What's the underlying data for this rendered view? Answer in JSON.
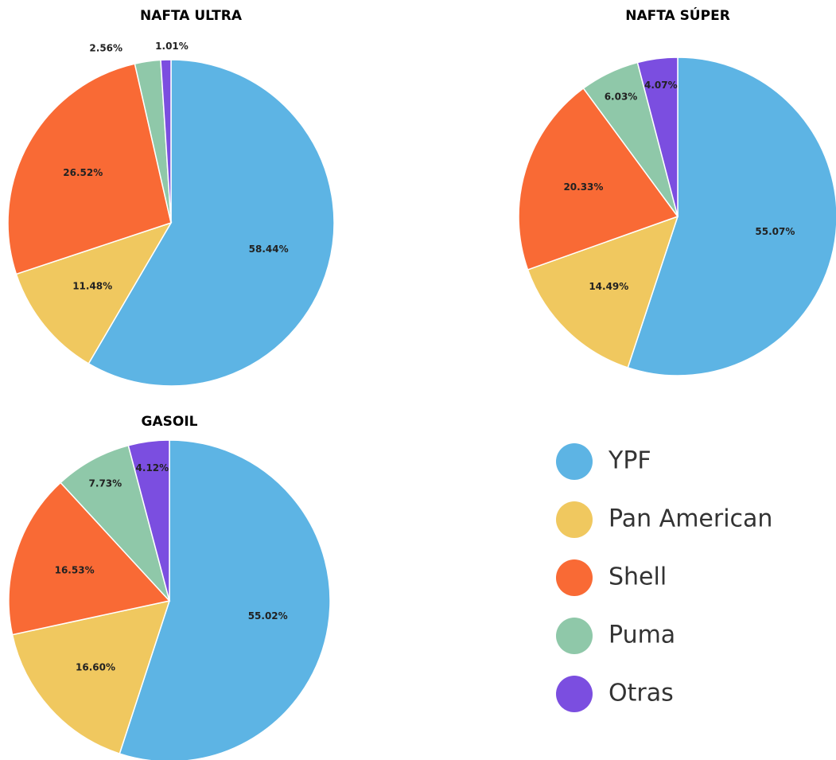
{
  "legend": {
    "categories": [
      "YPF",
      "Pan American",
      "Shell",
      "Puma",
      "Otras"
    ],
    "colors": [
      "#5db4e4",
      "#f0c85f",
      "#f96a35",
      "#8fc8a9",
      "#7b4ee0"
    ]
  },
  "chart_data": [
    {
      "type": "pie",
      "title": "NAFTA ULTRA",
      "values": [
        58.44,
        11.48,
        26.52,
        2.56,
        1.01
      ],
      "value_labels": [
        "58.44%",
        "11.48%",
        "26.52%",
        "2.56%",
        "1.01%"
      ]
    },
    {
      "type": "pie",
      "title": "NAFTA SÚPER",
      "values": [
        55.07,
        14.49,
        20.33,
        6.03,
        4.07
      ],
      "value_labels": [
        "55.07%",
        "14.49%",
        "20.33%",
        "6.03%",
        "4.07%"
      ]
    },
    {
      "type": "pie",
      "title": "GASOIL",
      "values": [
        55.02,
        16.6,
        16.53,
        7.73,
        4.12
      ],
      "value_labels": [
        "55.02%",
        "16.60%",
        "16.53%",
        "7.73%",
        "4.12%"
      ]
    }
  ]
}
